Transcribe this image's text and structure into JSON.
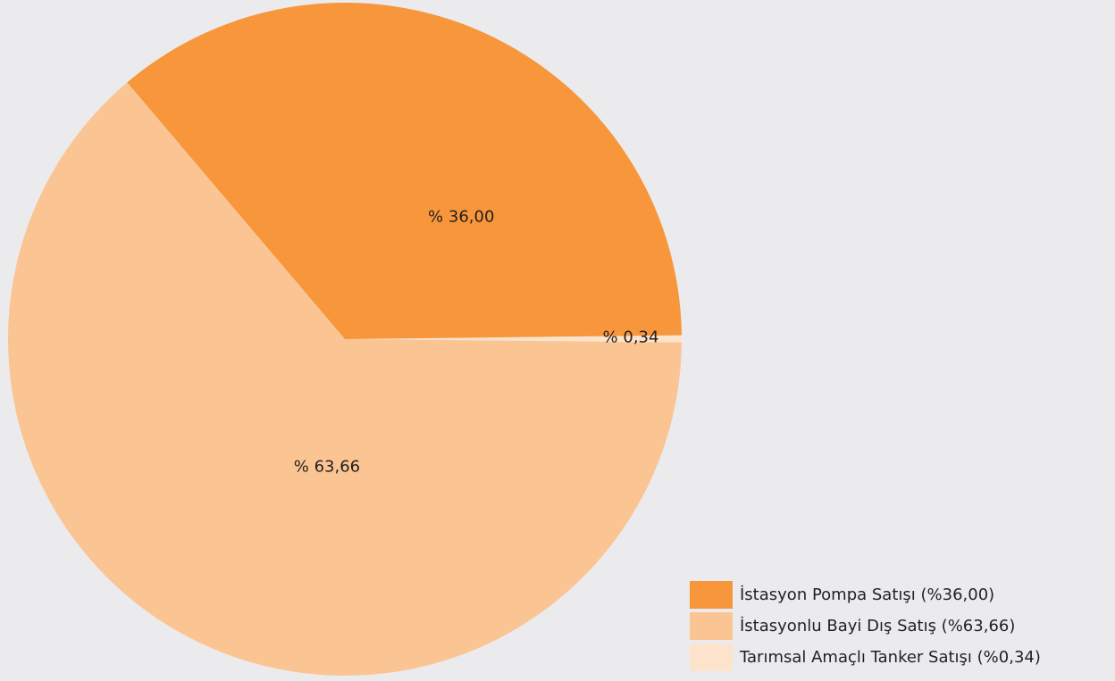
{
  "chart_data": {
    "type": "pie",
    "slices": [
      {
        "label": "İstasyon Pompa Satışı (%36,00)",
        "value": 36.0,
        "data_label": "% 36,00",
        "color": "#f7963b"
      },
      {
        "label": "İstasyonlu Bayi Dış Satış (%63,66)",
        "value": 63.66,
        "data_label": "% 63,66",
        "color": "#fbc593"
      },
      {
        "label": "Tarımsal Amaçlı Tanker Satışı (%0,34)",
        "value": 0.34,
        "data_label": "% 0,34",
        "color": "#fde3cb"
      }
    ],
    "legend_position": "bottom-right"
  }
}
